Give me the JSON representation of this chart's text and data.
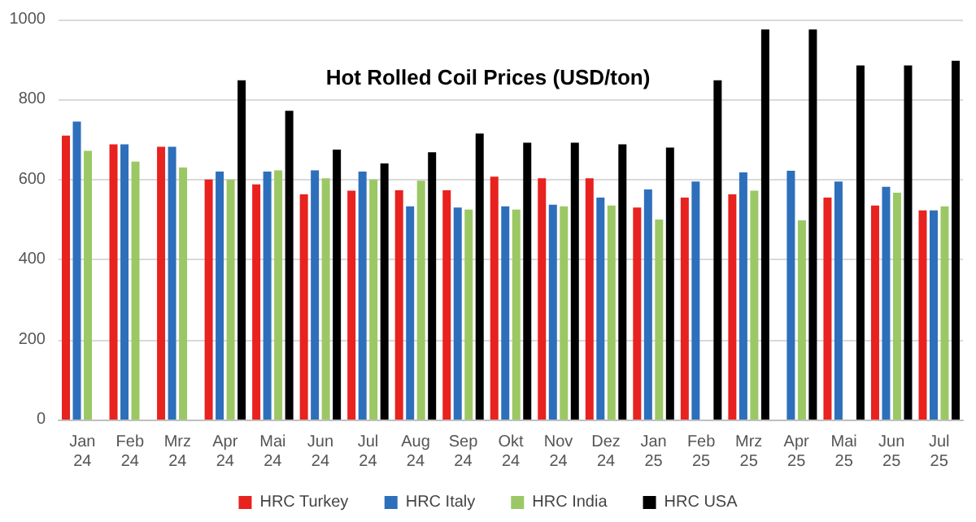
{
  "chart_data": {
    "type": "bar",
    "title": "Hot Rolled Coil Prices (USD/ton)",
    "categories": [
      "Jan\n24",
      "Feb\n24",
      "Mrz\n24",
      "Apr\n24",
      "Mai\n24",
      "Jun\n24",
      "Jul\n24",
      "Aug\n24",
      "Sep\n24",
      "Okt\n24",
      "Nov\n24",
      "Dez\n24",
      "Jan\n25",
      "Feb\n25",
      "Mrz\n25",
      "Apr\n25",
      "Mai\n25",
      "Jun\n25",
      "Jul\n25"
    ],
    "series": [
      {
        "name": "HRC Turkey",
        "color": "#e8221f",
        "values": [
          710,
          688,
          682,
          600,
          588,
          563,
          572,
          573,
          573,
          607,
          603,
          603,
          530,
          555,
          563,
          null,
          555,
          535,
          523
        ]
      },
      {
        "name": "HRC Italy",
        "color": "#2e6fbb",
        "values": [
          745,
          688,
          682,
          620,
          620,
          623,
          620,
          533,
          530,
          533,
          537,
          555,
          575,
          595,
          618,
          622,
          595,
          582,
          523
        ]
      },
      {
        "name": "HRC India",
        "color": "#9bc865",
        "values": [
          672,
          645,
          630,
          600,
          623,
          603,
          600,
          597,
          525,
          525,
          533,
          535,
          500,
          null,
          572,
          498,
          null,
          567,
          533
        ]
      },
      {
        "name": "HRC USA",
        "color": "#000000",
        "values": [
          null,
          null,
          null,
          848,
          772,
          675,
          640,
          668,
          715,
          692,
          692,
          688,
          680,
          848,
          975,
          975,
          885,
          885,
          897
        ]
      }
    ],
    "ylim": [
      0,
      1000
    ],
    "yticks": [
      0,
      200,
      400,
      600,
      800,
      1000
    ],
    "grid": "y",
    "legend": "bottom"
  }
}
